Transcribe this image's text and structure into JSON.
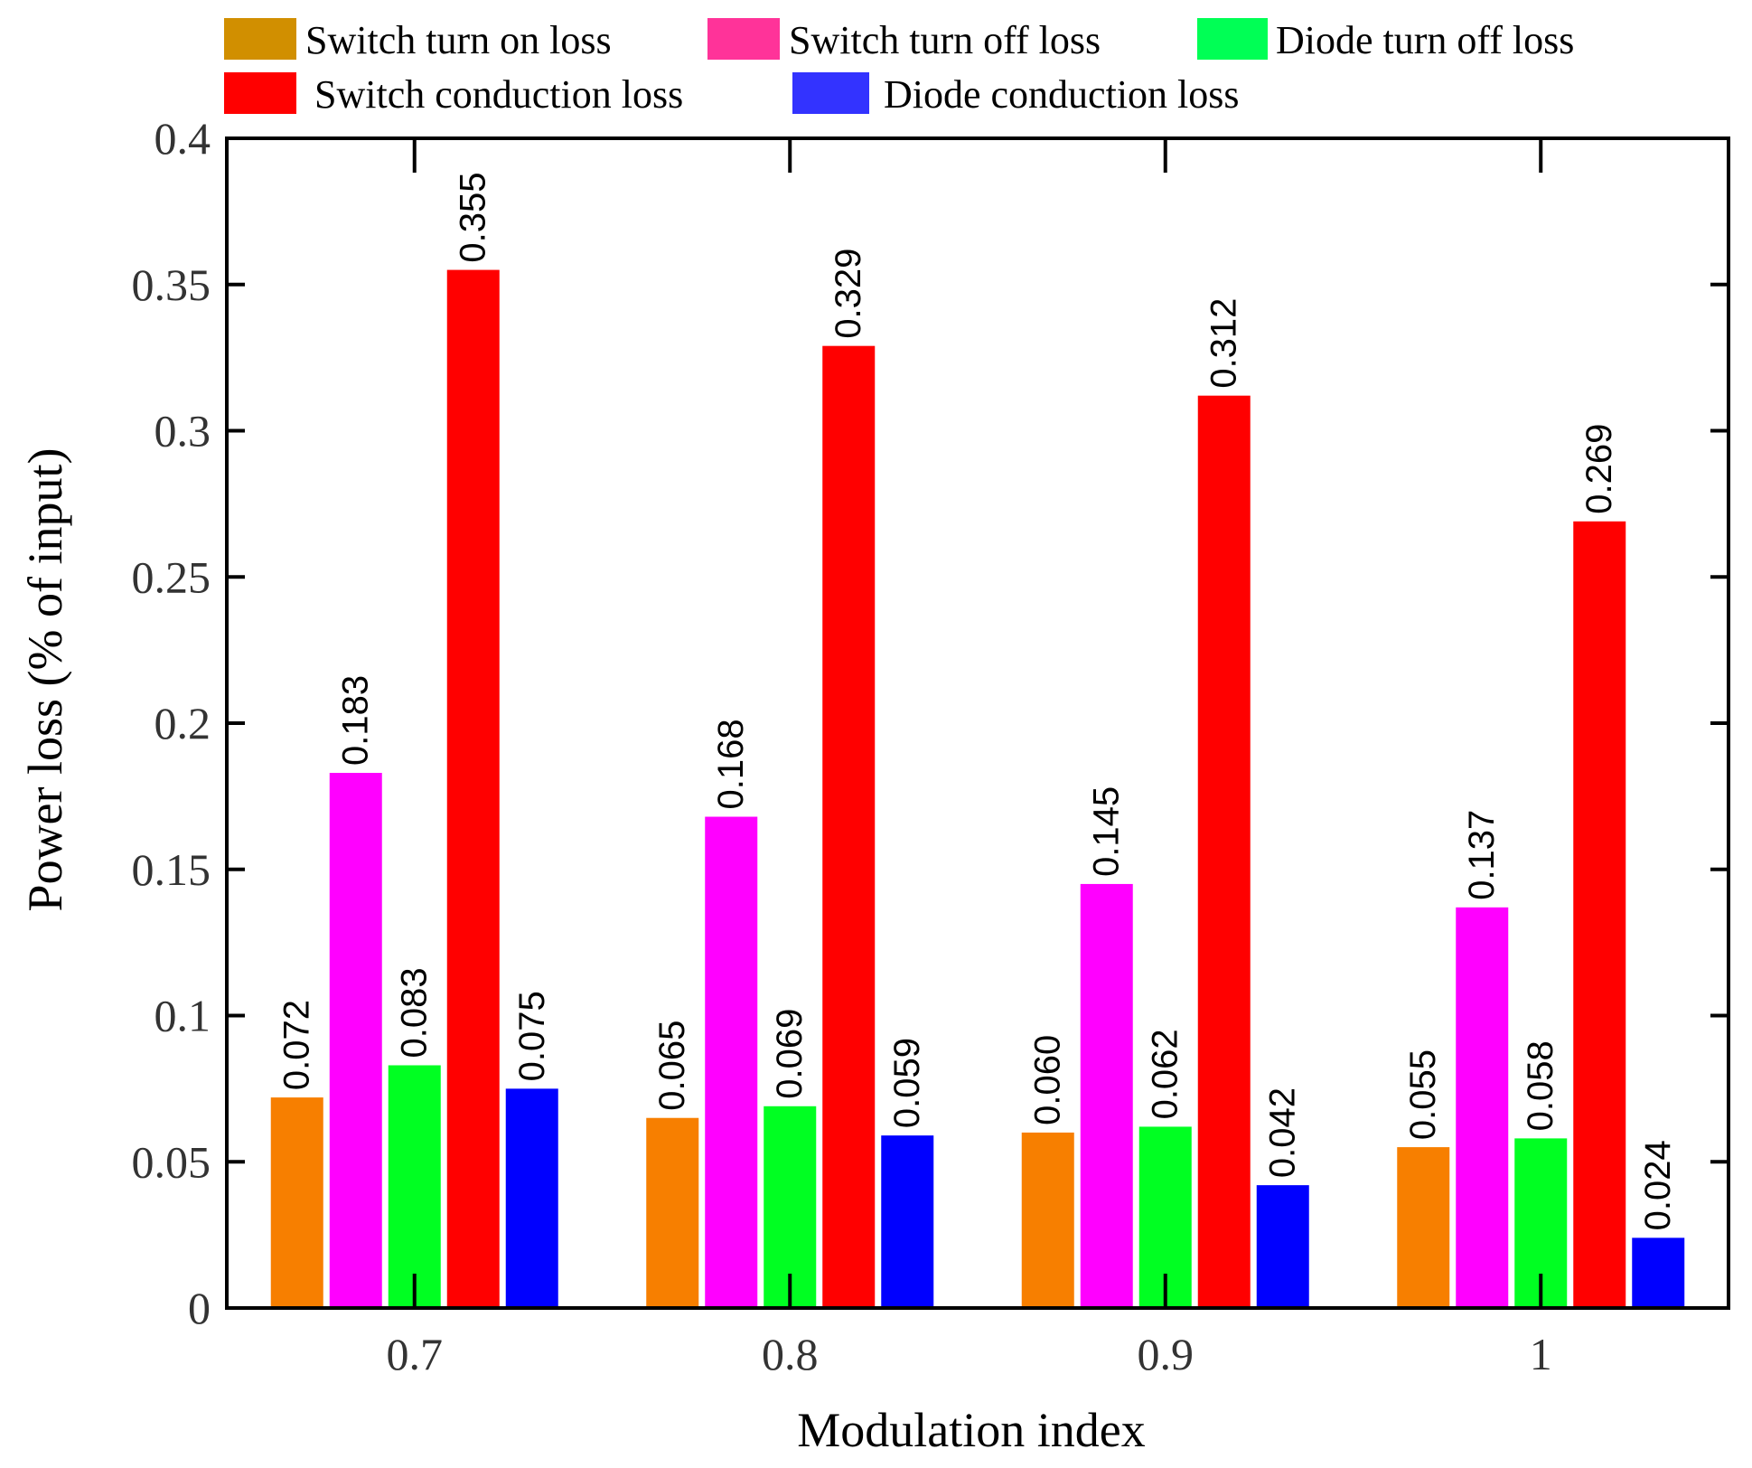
{
  "chart_data": {
    "type": "bar",
    "xlabel": "Modulation index",
    "ylabel": "Power loss (% of input)",
    "ylim": [
      0,
      0.4
    ],
    "yticks": [
      "0",
      "0.05",
      "0.1",
      "0.15",
      "0.2",
      "0.25",
      "0.3",
      "0.35",
      "0.4"
    ],
    "categories": [
      "0.7",
      "0.8",
      "0.9",
      "1"
    ],
    "legend_position": "top",
    "series": [
      {
        "name": "Switch turn on loss",
        "color": "#F77F00",
        "legend_color": "#D18F00",
        "values": [
          0.072,
          0.065,
          0.06,
          0.055
        ],
        "labels": [
          "0.072",
          "0.065",
          "0.060",
          "0.055"
        ]
      },
      {
        "name": "Switch turn off loss",
        "color": "#FF00FF",
        "legend_color": "#FF3399",
        "values": [
          0.183,
          0.168,
          0.145,
          0.137
        ],
        "labels": [
          "0.183",
          "0.168",
          "0.145",
          "0.137"
        ]
      },
      {
        "name": "Diode turn off loss",
        "color": "#00FF22",
        "legend_color": "#00FF55",
        "values": [
          0.083,
          0.069,
          0.062,
          0.058
        ],
        "labels": [
          "0.083",
          "0.069",
          "0.062",
          "0.058"
        ]
      },
      {
        "name": "Switch conduction loss",
        "color": "#FF0000",
        "legend_color": "#FF0000",
        "values": [
          0.355,
          0.329,
          0.312,
          0.269
        ],
        "labels": [
          "0.355",
          "0.329",
          "0.312",
          "0.269"
        ]
      },
      {
        "name": "Diode conduction loss",
        "color": "#0000FF",
        "legend_color": "#3333FF",
        "values": [
          0.075,
          0.059,
          0.042,
          0.024
        ],
        "labels": [
          "0.075",
          "0.059",
          "0.042",
          "0.024"
        ]
      }
    ]
  }
}
